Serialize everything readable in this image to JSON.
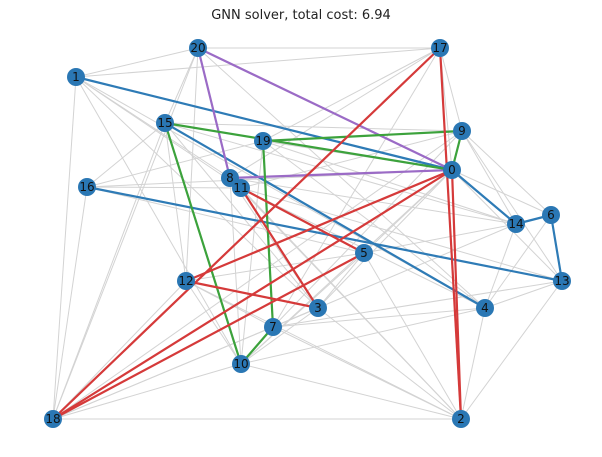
{
  "title": "GNN solver, total cost: 6.94",
  "colors": {
    "node": "#2a77b4",
    "background_edge": "#d3d3d3",
    "route_blue": "#2e7bb6",
    "route_purple": "#9b6bc6",
    "route_green": "#3ca23c",
    "route_red": "#d53a3a"
  },
  "nodes": [
    {
      "id": "0"
    },
    {
      "id": "1"
    },
    {
      "id": "2"
    },
    {
      "id": "3"
    },
    {
      "id": "4"
    },
    {
      "id": "5"
    },
    {
      "id": "6"
    },
    {
      "id": "7"
    },
    {
      "id": "8"
    },
    {
      "id": "9"
    },
    {
      "id": "10"
    },
    {
      "id": "11"
    },
    {
      "id": "12"
    },
    {
      "id": "13"
    },
    {
      "id": "14"
    },
    {
      "id": "15"
    },
    {
      "id": "16"
    },
    {
      "id": "17"
    },
    {
      "id": "18"
    },
    {
      "id": "19"
    },
    {
      "id": "20"
    }
  ],
  "background_edges": [
    [
      "1",
      "20"
    ],
    [
      "1",
      "17"
    ],
    [
      "1",
      "8"
    ],
    [
      "1",
      "4"
    ],
    [
      "1",
      "3"
    ],
    [
      "1",
      "10"
    ],
    [
      "1",
      "18"
    ],
    [
      "1",
      "0"
    ],
    [
      "1",
      "11"
    ],
    [
      "20",
      "0"
    ],
    [
      "20",
      "12"
    ],
    [
      "20",
      "18"
    ],
    [
      "20",
      "17"
    ],
    [
      "20",
      "15"
    ],
    [
      "20",
      "4"
    ],
    [
      "17",
      "8"
    ],
    [
      "17",
      "0"
    ],
    [
      "17",
      "9"
    ],
    [
      "17",
      "7"
    ],
    [
      "17",
      "19"
    ],
    [
      "15",
      "0"
    ],
    [
      "15",
      "3"
    ],
    [
      "15",
      "18"
    ],
    [
      "15",
      "4"
    ],
    [
      "15",
      "16"
    ],
    [
      "15",
      "12"
    ],
    [
      "15",
      "10"
    ],
    [
      "15",
      "9"
    ],
    [
      "15",
      "14"
    ],
    [
      "19",
      "0"
    ],
    [
      "19",
      "14"
    ],
    [
      "19",
      "4"
    ],
    [
      "19",
      "10"
    ],
    [
      "19",
      "16"
    ],
    [
      "9",
      "11"
    ],
    [
      "9",
      "14"
    ],
    [
      "9",
      "13"
    ],
    [
      "9",
      "7"
    ],
    [
      "9",
      "18"
    ],
    [
      "0",
      "6"
    ],
    [
      "0",
      "13"
    ],
    [
      "0",
      "12"
    ],
    [
      "0",
      "10"
    ],
    [
      "0",
      "5"
    ],
    [
      "0",
      "3"
    ],
    [
      "16",
      "11"
    ],
    [
      "16",
      "18"
    ],
    [
      "16",
      "5"
    ],
    [
      "16",
      "0"
    ],
    [
      "8",
      "14"
    ],
    [
      "8",
      "2"
    ],
    [
      "8",
      "10"
    ],
    [
      "8",
      "3"
    ],
    [
      "11",
      "2"
    ],
    [
      "11",
      "13"
    ],
    [
      "11",
      "4"
    ],
    [
      "14",
      "7"
    ],
    [
      "14",
      "4"
    ],
    [
      "14",
      "5"
    ],
    [
      "6",
      "9"
    ],
    [
      "6",
      "4"
    ],
    [
      "5",
      "18"
    ],
    [
      "5",
      "12"
    ],
    [
      "5",
      "2"
    ],
    [
      "5",
      "10"
    ],
    [
      "5",
      "3"
    ],
    [
      "13",
      "4"
    ],
    [
      "13",
      "7"
    ],
    [
      "12",
      "18"
    ],
    [
      "12",
      "7"
    ],
    [
      "12",
      "10"
    ],
    [
      "12",
      "2"
    ],
    [
      "12",
      "0"
    ],
    [
      "3",
      "7"
    ],
    [
      "3",
      "10"
    ],
    [
      "3",
      "18"
    ],
    [
      "7",
      "2"
    ],
    [
      "7",
      "18"
    ],
    [
      "7",
      "4"
    ],
    [
      "10",
      "18"
    ],
    [
      "10",
      "2"
    ],
    [
      "10",
      "4"
    ],
    [
      "18",
      "2"
    ],
    [
      "2",
      "4"
    ],
    [
      "2",
      "3"
    ],
    [
      "2",
      "13"
    ]
  ],
  "routes": [
    {
      "color": "route_blue",
      "path": [
        "0",
        "1"
      ]
    },
    {
      "color": "route_blue",
      "path": [
        "0",
        "14"
      ]
    },
    {
      "color": "route_blue",
      "path": [
        "6",
        "13"
      ]
    },
    {
      "color": "route_blue",
      "path": [
        "6",
        "14"
      ]
    },
    {
      "color": "route_blue",
      "path": [
        "13",
        "16"
      ]
    },
    {
      "color": "route_blue",
      "path": [
        "15",
        "4"
      ]
    },
    {
      "color": "route_purple",
      "path": [
        "0",
        "20",
        "8",
        "0"
      ]
    },
    {
      "color": "route_green",
      "path": [
        "0",
        "15",
        "10",
        "7",
        "19",
        "9",
        "0"
      ]
    },
    {
      "color": "route_red",
      "path": [
        "0",
        "12",
        "3",
        "11",
        "5",
        "18",
        "17",
        "2",
        "0"
      ]
    },
    {
      "color": "route_red",
      "path": [
        "0",
        "18"
      ]
    }
  ]
}
